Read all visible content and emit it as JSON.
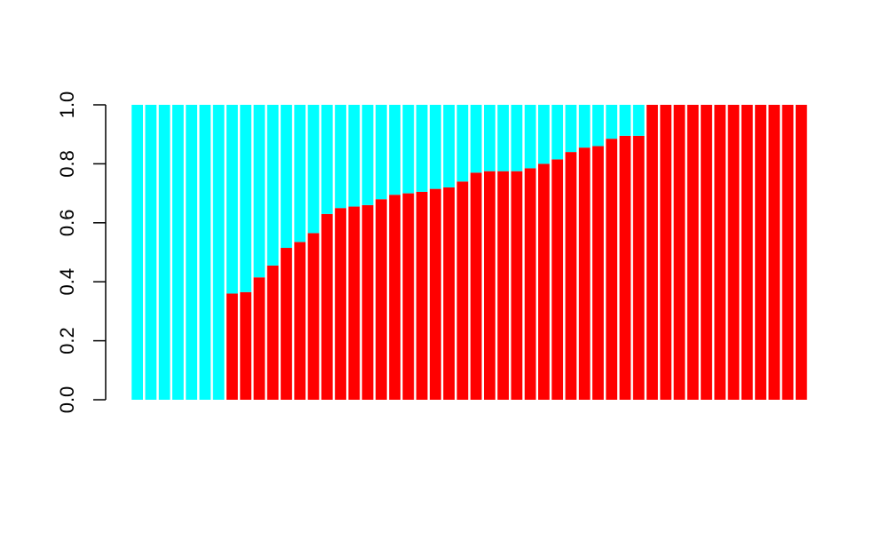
{
  "chart_data": {
    "type": "bar",
    "stacked": true,
    "title": "",
    "xlabel": "",
    "ylabel": "",
    "ylim": [
      0,
      1
    ],
    "y_ticks": [
      "0.0",
      "0.2",
      "0.4",
      "0.6",
      "0.8",
      "1.0"
    ],
    "x_tick_labels_shown": false,
    "bar_count": 50,
    "series": [
      {
        "color": "#ff0000",
        "values": [
          0,
          0,
          0,
          0,
          0,
          0,
          0,
          0.36,
          0.365,
          0.415,
          0.455,
          0.515,
          0.535,
          0.565,
          0.63,
          0.65,
          0.655,
          0.66,
          0.68,
          0.695,
          0.7,
          0.705,
          0.715,
          0.72,
          0.74,
          0.77,
          0.775,
          0.775,
          0.775,
          0.785,
          0.8,
          0.815,
          0.84,
          0.855,
          0.86,
          0.885,
          0.895,
          0.895,
          1,
          1,
          1,
          1,
          1,
          1,
          1,
          1,
          1,
          1,
          1,
          1
        ]
      },
      {
        "color": "#00ffff",
        "values": [
          1,
          1,
          1,
          1,
          1,
          1,
          1,
          0.64,
          0.635,
          0.585,
          0.545,
          0.485,
          0.465,
          0.435,
          0.37,
          0.35,
          0.345,
          0.34,
          0.32,
          0.305,
          0.3,
          0.295,
          0.285,
          0.28,
          0.26,
          0.23,
          0.225,
          0.225,
          0.225,
          0.215,
          0.2,
          0.185,
          0.16,
          0.145,
          0.14,
          0.115,
          0.105,
          0.105,
          0,
          0,
          0,
          0,
          0,
          0,
          0,
          0,
          0,
          0,
          0,
          0
        ]
      }
    ]
  }
}
